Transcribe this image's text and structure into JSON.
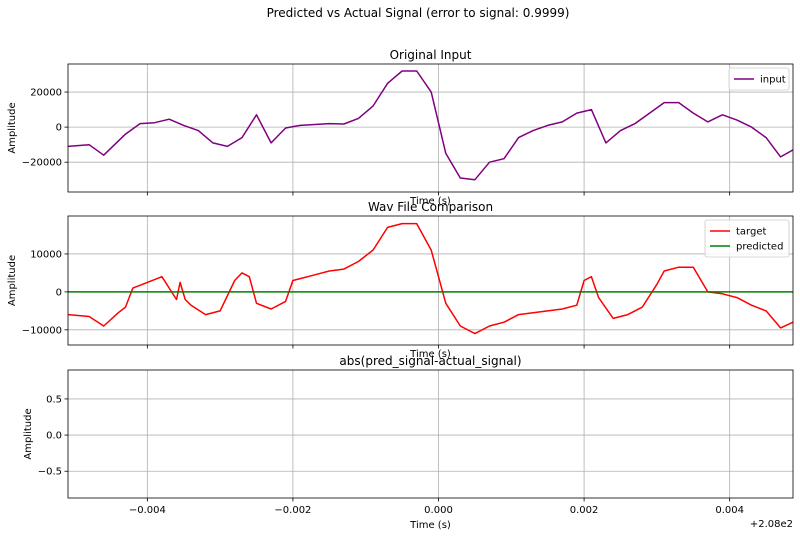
{
  "suptitle": "Predicted vs Actual Signal (error to signal: 0.9999)",
  "x_offset_label": "+2.08e2",
  "chart_data": [
    {
      "type": "line",
      "title": "Original Input",
      "xlabel": "Time (s)",
      "ylabel": "Amplitude",
      "xlim": [
        -0.00509,
        0.00487
      ],
      "ylim": [
        -37000,
        36000
      ],
      "x_ticks": [
        -0.004,
        -0.002,
        0.0,
        0.002,
        0.004
      ],
      "y_ticks": [
        -20000,
        0,
        20000
      ],
      "y_tick_labels": [
        "−20000",
        "0",
        "20000"
      ],
      "show_x_tick_labels": false,
      "grid": true,
      "legend": "top-right",
      "series": [
        {
          "name": "input",
          "color": "#800080",
          "x": [
            -0.00509,
            -0.0048,
            -0.0046,
            -0.0043,
            -0.0041,
            -0.0039,
            -0.0037,
            -0.0035,
            -0.0033,
            -0.0031,
            -0.0029,
            -0.0027,
            -0.0025,
            -0.0023,
            -0.0021,
            -0.0019,
            -0.0017,
            -0.0015,
            -0.0013,
            -0.0011,
            -0.0009,
            -0.0007,
            -0.0005,
            -0.0003,
            -0.0001,
            0.0001,
            0.0003,
            0.0005,
            0.0007,
            0.0009,
            0.0011,
            0.0013,
            0.0015,
            0.0017,
            0.0019,
            0.0021,
            0.0023,
            0.0025,
            0.0027,
            0.0029,
            0.0031,
            0.0033,
            0.0035,
            0.0037,
            0.0039,
            0.0041,
            0.0043,
            0.0045,
            0.0047,
            0.00487
          ],
          "y": [
            -11000,
            -10000,
            -16000,
            -4000,
            2000,
            2500,
            4500,
            1000,
            -2000,
            -9000,
            -11000,
            -6000,
            7000,
            -9000,
            -500,
            1000,
            1500,
            2000,
            1800,
            5000,
            12000,
            25000,
            32000,
            32000,
            20000,
            -15000,
            -29000,
            -30000,
            -20000,
            -18000,
            -6000,
            -2000,
            1000,
            3000,
            8000,
            10000,
            -9000,
            -2000,
            2000,
            8000,
            14000,
            14000,
            8000,
            3000,
            7000,
            4000,
            0,
            -6000,
            -17000,
            -13000
          ]
        }
      ]
    },
    {
      "type": "line",
      "title": "Wav File Comparison",
      "xlabel": "Time (s)",
      "ylabel": "Amplitude",
      "xlim": [
        -0.00509,
        0.00487
      ],
      "ylim": [
        -14000,
        20000
      ],
      "x_ticks": [
        -0.004,
        -0.002,
        0.0,
        0.002,
        0.004
      ],
      "y_ticks": [
        -10000,
        0,
        10000
      ],
      "y_tick_labels": [
        "−10000",
        "0",
        "10000"
      ],
      "show_x_tick_labels": false,
      "grid": true,
      "legend": "top-right",
      "series": [
        {
          "name": "target",
          "color": "#ff0000",
          "x": [
            -0.00509,
            -0.0048,
            -0.0046,
            -0.0044,
            -0.0043,
            -0.0042,
            -0.004,
            -0.0038,
            -0.0036,
            -0.00355,
            -0.00348,
            -0.0034,
            -0.0032,
            -0.003,
            -0.0028,
            -0.0027,
            -0.0026,
            -0.0025,
            -0.0023,
            -0.0021,
            -0.002,
            -0.0019,
            -0.0017,
            -0.0015,
            -0.0013,
            -0.0011,
            -0.0009,
            -0.0007,
            -0.0005,
            -0.0003,
            -0.0001,
            0.0001,
            0.0003,
            0.0005,
            0.0007,
            0.0009,
            0.0011,
            0.0013,
            0.0015,
            0.0017,
            0.0019,
            0.002,
            0.0021,
            0.0022,
            0.0024,
            0.0026,
            0.0028,
            0.003,
            0.0031,
            0.0033,
            0.0035,
            0.0037,
            0.0039,
            0.0041,
            0.0043,
            0.0045,
            0.0047,
            0.00487
          ],
          "y": [
            -6000,
            -6500,
            -9000,
            -5500,
            -4000,
            1000,
            2500,
            4000,
            -2000,
            2500,
            -2000,
            -3500,
            -6000,
            -5000,
            3000,
            5000,
            4000,
            -3000,
            -4500,
            -2500,
            3000,
            3500,
            4500,
            5500,
            6000,
            8000,
            11000,
            17000,
            18000,
            18000,
            11000,
            -3000,
            -9000,
            -11000,
            -9000,
            -8000,
            -6000,
            -5500,
            -5000,
            -4500,
            -3500,
            3000,
            4000,
            -1500,
            -7000,
            -6000,
            -4000,
            2000,
            5500,
            6500,
            6500,
            0,
            -500,
            -1500,
            -3500,
            -5000,
            -9500,
            -8000
          ]
        },
        {
          "name": "predicted",
          "color": "#008000",
          "x": [
            -0.00509,
            0.00487
          ],
          "y": [
            0,
            0
          ]
        }
      ]
    },
    {
      "type": "line",
      "title": "abs(pred_signal-actual_signal)",
      "xlabel": "Time (s)",
      "ylabel": "Amplitude",
      "xlim": [
        -0.00509,
        0.00487
      ],
      "ylim": [
        -0.87,
        0.9
      ],
      "x_ticks": [
        -0.004,
        -0.002,
        0.0,
        0.002,
        0.004
      ],
      "x_tick_labels": [
        "−0.004",
        "−0.002",
        "0.000",
        "0.002",
        "0.004"
      ],
      "y_ticks": [
        -0.5,
        0.0,
        0.5
      ],
      "y_tick_labels": [
        "−0.5",
        "0.0",
        "0.5"
      ],
      "show_x_tick_labels": true,
      "grid": true,
      "series": []
    }
  ]
}
